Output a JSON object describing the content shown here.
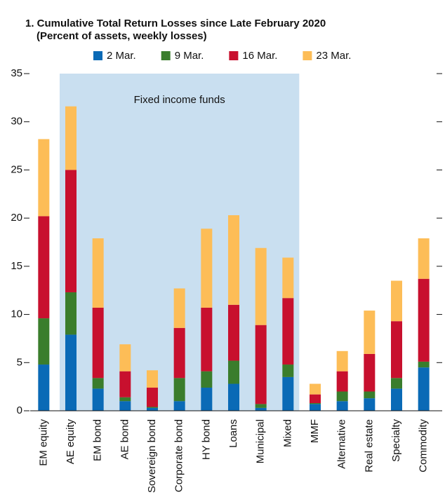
{
  "chart_data": {
    "type": "stacked_bar",
    "title": [
      "1. Cumulative Total Return Losses since Late February 2020",
      "(Percent of assets, weekly losses)"
    ],
    "categories": [
      "EM equity",
      "AE equity",
      "EM bond",
      "AE bond",
      "Sovereign bond",
      "Corporate bond",
      "HY bond",
      "Loans",
      "Municipal",
      "Mixed",
      "MMF",
      "Alternative",
      "Real estate",
      "Specialty",
      "Commodity"
    ],
    "series": [
      {
        "name": "2 Mar.",
        "color": "#0a6ab6",
        "values": [
          4.8,
          7.9,
          2.3,
          1.0,
          0.3,
          1.0,
          2.4,
          2.8,
          0.3,
          3.5,
          0.7,
          1.0,
          1.3,
          2.3,
          4.5
        ]
      },
      {
        "name": "9 Mar.",
        "color": "#3a7d2c",
        "values": [
          4.8,
          4.4,
          1.1,
          0.4,
          0.1,
          2.4,
          1.7,
          2.4,
          0.4,
          1.3,
          0.1,
          1.0,
          0.7,
          1.1,
          0.6
        ]
      },
      {
        "name": "16 Mar.",
        "color": "#c8102e",
        "values": [
          10.6,
          12.7,
          7.3,
          2.7,
          2.0,
          5.2,
          6.6,
          5.8,
          8.2,
          6.9,
          0.9,
          2.1,
          3.9,
          5.9,
          8.6
        ]
      },
      {
        "name": "23 Mar.",
        "color": "#fdbd57",
        "values": [
          8.0,
          6.6,
          7.2,
          2.8,
          1.8,
          4.1,
          8.2,
          9.3,
          8.0,
          4.2,
          1.1,
          2.1,
          4.5,
          4.2,
          4.2
        ]
      }
    ],
    "annotation": {
      "text": "Fixed income funds",
      "from": "AE equity",
      "to": "Mixed",
      "color": "#c9dff0"
    },
    "ylim": [
      0,
      35
    ],
    "yticks": [
      0,
      5,
      10,
      15,
      20,
      25,
      30,
      35
    ]
  }
}
